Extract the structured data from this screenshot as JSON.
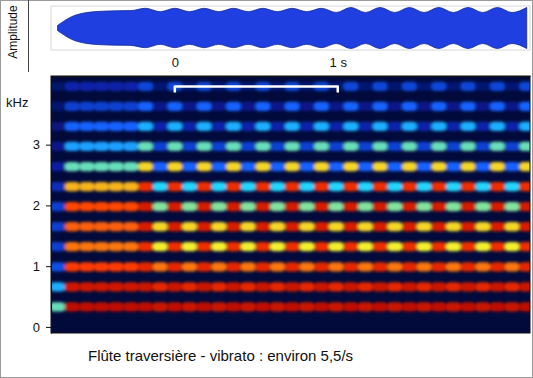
{
  "chart_data": [
    {
      "type": "area",
      "y_label": "Amplitude",
      "color": "#1f3fe0",
      "tick_labels": false,
      "xlim": [
        -0.76,
        2.18
      ],
      "ylim": [
        -1.05,
        1.05
      ],
      "x": [
        -0.72,
        -0.63,
        -0.54,
        -0.45,
        -0.36,
        -0.27,
        -0.18,
        -0.09,
        0,
        0.09,
        0.18,
        0.27,
        0.36,
        0.45,
        0.54,
        0.63,
        0.72,
        0.81,
        0.9,
        0.99,
        1.08,
        1.17,
        1.26,
        1.35,
        1.44,
        1.53,
        1.62,
        1.71,
        1.8,
        1.89,
        1.98,
        2.07,
        2.16
      ],
      "values": [
        0.12,
        0.55,
        0.74,
        0.8,
        0.82,
        0.83,
        0.94,
        0.78,
        0.94,
        0.78,
        0.94,
        0.78,
        0.94,
        0.78,
        0.94,
        0.78,
        0.94,
        0.78,
        0.94,
        0.74,
        0.98,
        0.74,
        0.98,
        0.74,
        0.98,
        0.74,
        0.98,
        0.74,
        0.98,
        0.74,
        0.98,
        0.74,
        0.98
      ]
    },
    {
      "type": "heatmap",
      "title": "Flûte traversière - vibrato : environ 5,5/s",
      "y_label": "kHz",
      "xlim": [
        -0.76,
        2.18
      ],
      "xticks": [
        {
          "value": 0,
          "label": "0"
        },
        {
          "value": 1,
          "label": "1 s"
        }
      ],
      "ylim": [
        -0.1,
        4.13
      ],
      "yticks": [
        0,
        1,
        2,
        3
      ],
      "x": [
        -0.72,
        -0.63,
        -0.54,
        -0.45,
        -0.36,
        -0.27,
        -0.18,
        -0.09,
        0,
        0.09,
        0.18,
        0.27,
        0.36,
        0.45,
        0.54,
        0.63,
        0.72,
        0.81,
        0.9,
        0.99,
        1.08,
        1.17,
        1.26,
        1.35,
        1.44,
        1.53,
        1.62,
        1.71,
        1.8,
        1.89,
        1.98,
        2.07,
        2.16
      ],
      "y": [
        0.33,
        0.66,
        0.99,
        1.32,
        1.65,
        1.98,
        2.31,
        2.64,
        2.97,
        3.3,
        3.63,
        3.96
      ],
      "cells": [
        [
          60,
          97,
          97,
          97,
          97,
          97,
          97,
          95,
          97,
          95,
          97,
          95,
          97,
          95,
          97,
          95,
          97,
          95,
          97,
          95,
          97,
          95,
          97,
          95,
          97,
          95,
          97,
          95,
          97,
          95,
          97,
          95,
          97
        ],
        [
          50,
          94,
          94,
          94,
          94,
          94,
          95,
          90,
          95,
          90,
          95,
          90,
          95,
          90,
          95,
          90,
          95,
          90,
          95,
          90,
          95,
          90,
          95,
          90,
          95,
          90,
          95,
          90,
          95,
          90,
          95,
          90,
          95
        ],
        [
          35,
          85,
          85,
          85,
          85,
          85,
          90,
          80,
          90,
          80,
          90,
          80,
          90,
          80,
          90,
          80,
          90,
          80,
          90,
          80,
          90,
          80,
          90,
          80,
          90,
          80,
          90,
          80,
          90,
          80,
          90,
          80,
          90
        ],
        [
          30,
          80,
          80,
          80,
          80,
          80,
          88,
          70,
          88,
          70,
          88,
          70,
          88,
          70,
          88,
          70,
          88,
          70,
          88,
          70,
          88,
          70,
          88,
          70,
          88,
          70,
          88,
          70,
          88,
          70,
          88,
          70,
          88
        ],
        [
          30,
          82,
          82,
          82,
          82,
          82,
          92,
          72,
          92,
          72,
          92,
          72,
          92,
          72,
          92,
          72,
          92,
          72,
          92,
          72,
          92,
          72,
          92,
          72,
          92,
          72,
          92,
          72,
          92,
          72,
          92,
          72,
          92
        ],
        [
          30,
          84,
          84,
          84,
          84,
          84,
          93,
          62,
          93,
          62,
          93,
          62,
          93,
          62,
          93,
          62,
          93,
          62,
          93,
          62,
          93,
          62,
          93,
          62,
          93,
          62,
          93,
          62,
          93,
          62,
          93,
          62,
          93
        ],
        [
          25,
          75,
          75,
          75,
          75,
          75,
          88,
          55,
          88,
          55,
          88,
          55,
          88,
          55,
          88,
          55,
          88,
          55,
          88,
          55,
          88,
          55,
          88,
          55,
          88,
          55,
          88,
          55,
          88,
          55,
          88,
          55,
          88
        ],
        [
          20,
          60,
          60,
          60,
          60,
          60,
          72,
          40,
          72,
          40,
          72,
          40,
          72,
          40,
          72,
          40,
          72,
          40,
          72,
          40,
          72,
          40,
          72,
          40,
          72,
          40,
          72,
          40,
          72,
          40,
          72,
          40,
          72
        ],
        [
          15,
          48,
          48,
          48,
          48,
          48,
          60,
          30,
          60,
          30,
          60,
          30,
          60,
          30,
          60,
          30,
          60,
          30,
          60,
          30,
          60,
          30,
          60,
          30,
          60,
          30,
          60,
          30,
          60,
          30,
          60,
          30,
          60
        ],
        [
          12,
          40,
          40,
          40,
          40,
          40,
          50,
          22,
          50,
          22,
          50,
          22,
          50,
          22,
          50,
          22,
          50,
          22,
          50,
          22,
          50,
          22,
          50,
          22,
          50,
          22,
          50,
          22,
          50,
          22,
          50,
          22,
          50
        ],
        [
          10,
          30,
          30,
          30,
          30,
          30,
          40,
          15,
          40,
          15,
          40,
          15,
          40,
          15,
          40,
          15,
          40,
          15,
          40,
          15,
          40,
          15,
          40,
          15,
          40,
          15,
          40,
          15,
          40,
          15,
          40,
          15,
          40
        ],
        [
          8,
          22,
          22,
          22,
          22,
          22,
          32,
          10,
          32,
          10,
          32,
          10,
          32,
          10,
          32,
          10,
          32,
          10,
          32,
          10,
          32,
          10,
          32,
          10,
          32,
          10,
          32,
          10,
          32,
          10,
          32,
          10,
          32
        ]
      ]
    }
  ]
}
